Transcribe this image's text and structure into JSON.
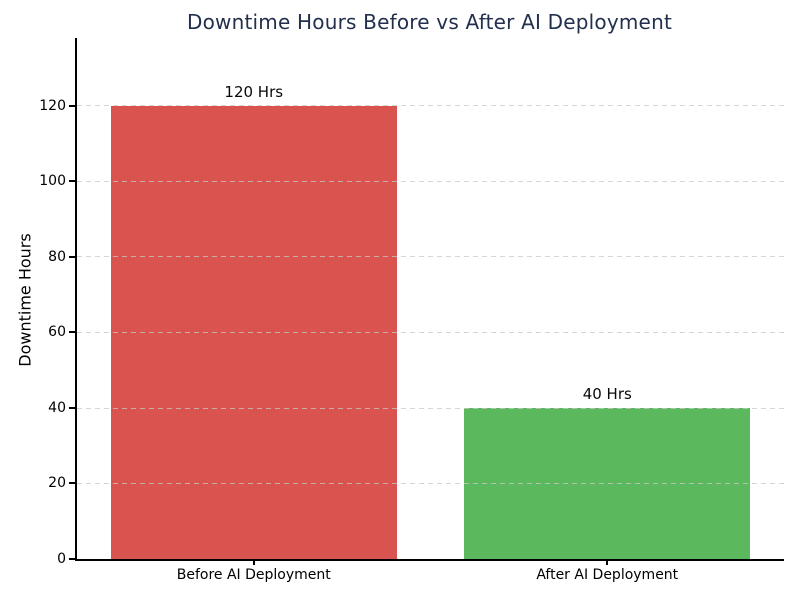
{
  "page": {
    "background": "#ffffff"
  },
  "chart_data": {
    "type": "bar",
    "title": "Downtime Hours Before vs After AI Deployment",
    "xlabel": "",
    "ylabel": "Downtime Hours",
    "categories": [
      "Before AI Deployment",
      "After AI Deployment"
    ],
    "values": [
      120,
      40
    ],
    "bar_labels": [
      "120 Hrs",
      "40 Hrs"
    ],
    "bar_colors": [
      "#d9534f",
      "#5cb85c"
    ],
    "ylim": [
      0,
      138
    ],
    "yticks": [
      0,
      20,
      40,
      60,
      80,
      100,
      120
    ],
    "grid": "horizontal-dashed",
    "legend": "none",
    "colors": {
      "title": "#22304d",
      "grid": "#c8c8c8",
      "axis": "#000000",
      "tick_text": "#000000",
      "value_text": "#0a0a0a"
    }
  }
}
